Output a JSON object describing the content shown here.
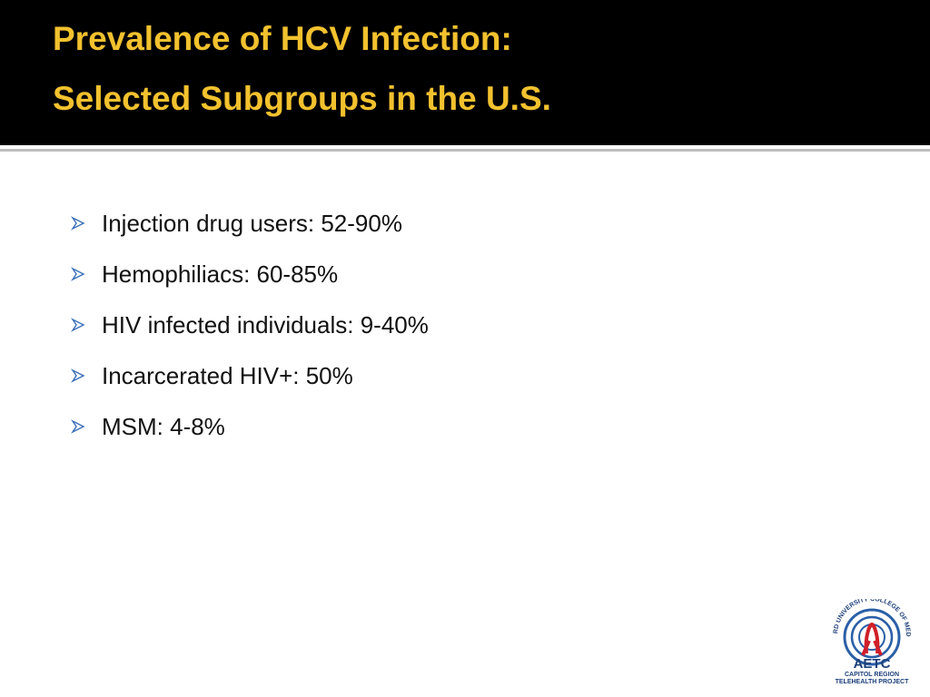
{
  "header": {
    "title_lines": [
      "Prevalence of HCV Infection:",
      "Selected Subgroups in the U.S."
    ]
  },
  "bullets": [
    "Injection drug users: 52-90%",
    "Hemophiliacs: 60-85%",
    "HIV infected individuals: 9-40%",
    "Incarcerated HIV+: 50%",
    "MSM: 4-8%"
  ],
  "logo": {
    "arc_text": "HOWARD UNIVERSITY COLLEGE OF MEDICINE",
    "name": "AETC",
    "line1": "CAPITOL REGION",
    "line2": "TELEHEALTH PROJECT"
  }
}
